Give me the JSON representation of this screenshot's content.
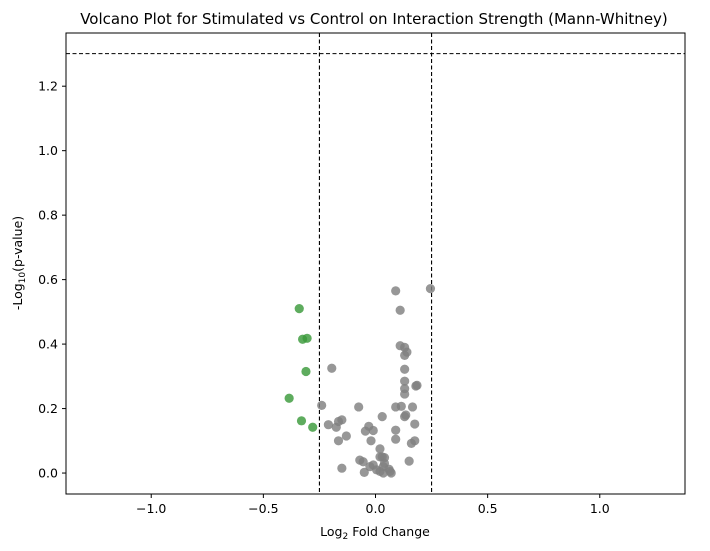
{
  "chart_data": {
    "type": "scatter",
    "title": "Volcano Plot for Stimulated vs Control on Interaction Strength (Mann-Whitney)",
    "xlabel": {
      "main": "Log",
      "sub": "2",
      "rest": " Fold Change"
    },
    "ylabel": {
      "main": "-Log",
      "sub": "10",
      "rest": "(p-value)"
    },
    "xlim": [
      -1.38,
      1.38
    ],
    "ylim": [
      -0.065,
      1.365
    ],
    "xticks": [
      -1.0,
      -0.5,
      0.0,
      0.5,
      1.0
    ],
    "xtick_labels": [
      "−1.0",
      "−0.5",
      "0.0",
      "0.5",
      "1.0"
    ],
    "yticks": [
      0.0,
      0.2,
      0.4,
      0.6,
      0.8,
      1.0,
      1.2
    ],
    "ytick_labels": [
      "0.0",
      "0.2",
      "0.4",
      "0.6",
      "0.8",
      "1.0",
      "1.2"
    ],
    "grid": false,
    "threshold_lines": {
      "vertical": [
        -0.25,
        0.25
      ],
      "horizontal": [
        1.301
      ]
    },
    "colors": {
      "significant": "#3a9a3a",
      "not_significant": "#808080",
      "threshold": "#000000"
    },
    "series": [
      {
        "key": "significant",
        "points": [
          [
            -0.34,
            0.51
          ],
          [
            -0.325,
            0.415
          ],
          [
            -0.305,
            0.418
          ],
          [
            -0.31,
            0.315
          ],
          [
            -0.385,
            0.232
          ],
          [
            -0.33,
            0.162
          ],
          [
            -0.28,
            0.142
          ]
        ]
      },
      {
        "key": "not_significant",
        "points": [
          [
            0.09,
            0.565
          ],
          [
            0.245,
            0.572
          ],
          [
            0.11,
            0.505
          ],
          [
            0.11,
            0.395
          ],
          [
            0.13,
            0.39
          ],
          [
            0.14,
            0.375
          ],
          [
            0.13,
            0.365
          ],
          [
            -0.195,
            0.325
          ],
          [
            0.13,
            0.322
          ],
          [
            0.13,
            0.285
          ],
          [
            0.185,
            0.272
          ],
          [
            0.18,
            0.27
          ],
          [
            0.13,
            0.262
          ],
          [
            0.13,
            0.245
          ],
          [
            -0.24,
            0.21
          ],
          [
            -0.075,
            0.205
          ],
          [
            0.09,
            0.205
          ],
          [
            0.115,
            0.207
          ],
          [
            0.165,
            0.205
          ],
          [
            0.135,
            0.18
          ],
          [
            0.13,
            0.175
          ],
          [
            0.03,
            0.175
          ],
          [
            -0.15,
            0.165
          ],
          [
            -0.165,
            0.16
          ],
          [
            -0.21,
            0.15
          ],
          [
            -0.175,
            0.142
          ],
          [
            0.175,
            0.152
          ],
          [
            -0.03,
            0.145
          ],
          [
            -0.045,
            0.13
          ],
          [
            -0.01,
            0.132
          ],
          [
            0.09,
            0.133
          ],
          [
            -0.13,
            0.115
          ],
          [
            -0.165,
            0.1
          ],
          [
            -0.02,
            0.1
          ],
          [
            0.09,
            0.105
          ],
          [
            0.175,
            0.1
          ],
          [
            0.16,
            0.092
          ],
          [
            0.02,
            0.075
          ],
          [
            0.02,
            0.05
          ],
          [
            0.03,
            0.05
          ],
          [
            0.04,
            0.048
          ],
          [
            -0.07,
            0.04
          ],
          [
            -0.055,
            0.035
          ],
          [
            0.15,
            0.037
          ],
          [
            0.04,
            0.03
          ],
          [
            -0.01,
            0.025
          ],
          [
            -0.025,
            0.02
          ],
          [
            0.035,
            0.02
          ],
          [
            0.06,
            0.012
          ],
          [
            -0.15,
            0.015
          ],
          [
            0.005,
            0.01
          ],
          [
            0.02,
            0.005
          ],
          [
            0.065,
            0.005
          ],
          [
            -0.05,
            0.002
          ],
          [
            0.035,
            0.0
          ],
          [
            0.07,
            0.0
          ]
        ]
      }
    ]
  }
}
